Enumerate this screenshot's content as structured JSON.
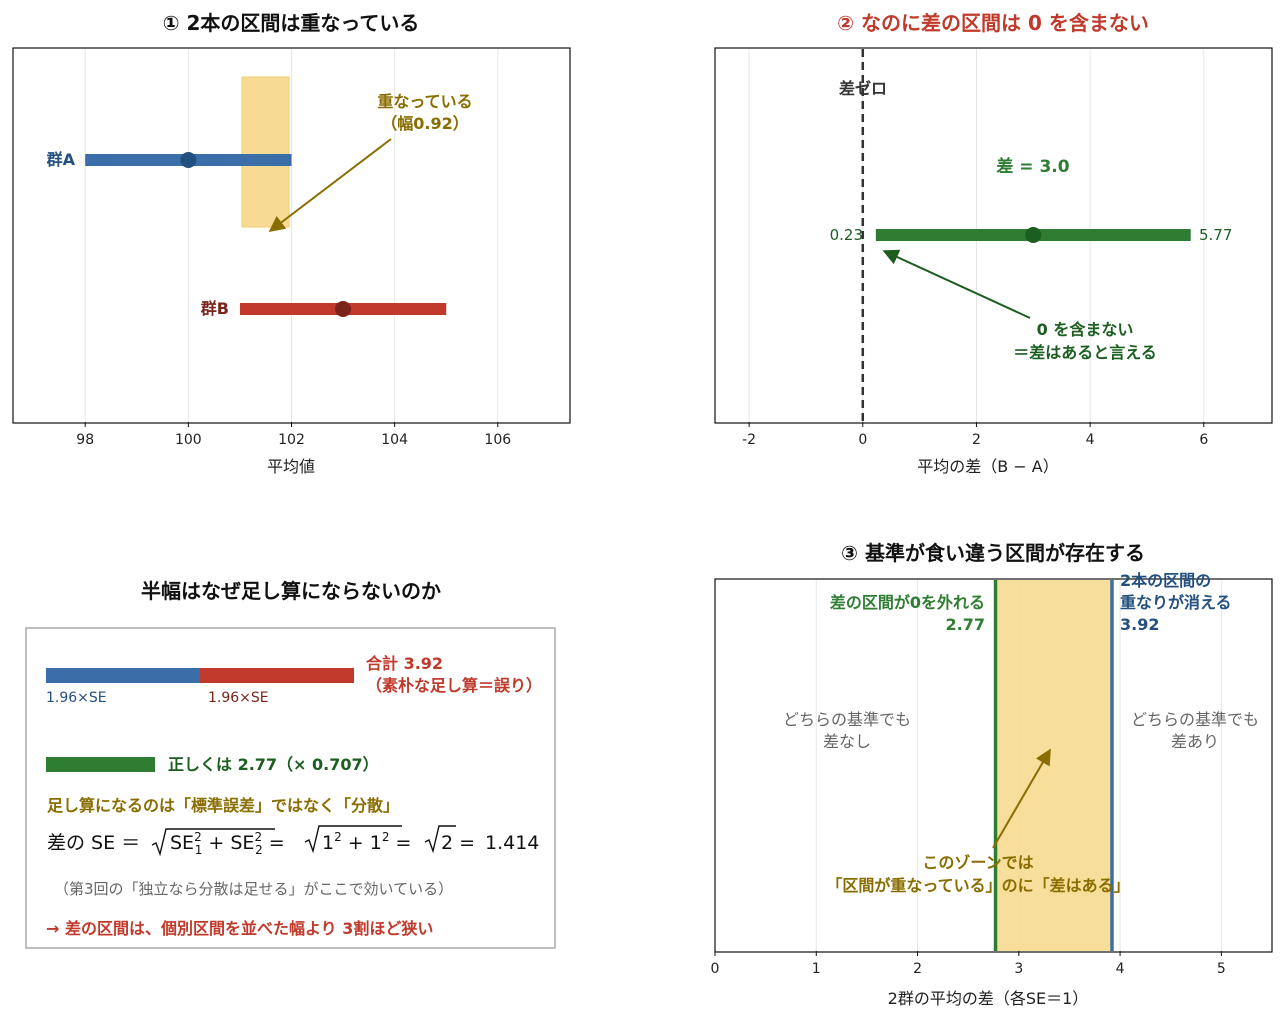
{
  "colors": {
    "blue": "#3b6ea8",
    "blue_dark": "#23507f",
    "red": "#c0392b",
    "red_dark": "#7b241c",
    "green": "#2e7d32",
    "green_dark": "#1b5e20",
    "yellow_fill": "#f7d88a",
    "gold_text": "#8a6d00",
    "gray_text": "#666666",
    "grid": "#e6e6e6"
  },
  "panel1": {
    "title": "① 2本の区間は重なっている",
    "label_a": "群A",
    "label_b": "群B",
    "overlap_line1": "重なっている",
    "overlap_line2": "（幅0.92）"
  },
  "panel2": {
    "title": "② なのに差の区間は 0 を含まない",
    "zero_label": "差ゼロ",
    "diff_label": "差 = 3.0",
    "lo_label": "0.23",
    "hi_label": "5.77",
    "note_line1": "0 を含まない",
    "note_line2": "＝差はあると言える"
  },
  "panel3": {
    "title": "半幅はなぜ足し算にならないのか",
    "seg1_label": "1.96×SE",
    "seg2_label": "1.96×SE",
    "sum_line1": "合計 3.92",
    "sum_line2": "（素朴な足し算＝誤り）",
    "correct_label": "正しくは 2.77（× 0.707）",
    "variance_heading": "足し算になるのは「標準誤差」ではなく「分散」",
    "formula_prefix": "差の SE ＝",
    "formula_value": "1.414",
    "note": "（第3回の「独立なら分散は足せる」がここで効いている）",
    "conclusion": "→ 差の区間は、個別区間を並べた幅より 3割ほど狭い"
  },
  "panel4": {
    "title": "③ 基準が食い違う区間が存在する",
    "green_line1": "差の区間が0を外れる",
    "green_line2": "2.77",
    "blue_line1": "2本の区間の",
    "blue_line2": "重なりが消える",
    "blue_line3": "3.92",
    "left_line1": "どちらの基準でも",
    "left_line2": "差なし",
    "right_line1": "どちらの基準でも",
    "right_line2": "差あり",
    "zone_line1": "このゾーンでは",
    "zone_line2": "「区間が重なっている」のに「差はある」"
  },
  "chart_data": [
    {
      "type": "interval",
      "title": "① 2本の区間は重なっている",
      "xlabel": "平均値",
      "xlim": [
        96.6,
        107.4
      ],
      "xticks": [
        98,
        100,
        102,
        104,
        106
      ],
      "series": [
        {
          "name": "群A",
          "mean": 100,
          "lo": 98,
          "hi": 102
        },
        {
          "name": "群B",
          "mean": 103,
          "lo": 101,
          "hi": 105
        }
      ],
      "overlap_band": [
        101,
        102
      ],
      "grid": true
    },
    {
      "type": "interval",
      "title": "② なのに差の区間は 0 を含まない",
      "xlabel": "平均の差（B − A）",
      "xlim": [
        -2.6,
        7.2
      ],
      "xticks": [
        -2,
        0,
        2,
        4,
        6
      ],
      "series": [
        {
          "mean": 3.0,
          "lo": 0.23,
          "hi": 5.77
        }
      ],
      "reference_line": 0,
      "grid": true
    },
    {
      "type": "bar",
      "title": "半幅はなぜ足し算にならないのか",
      "segments": [
        {
          "label": "1.96×SE",
          "value": 1.96
        },
        {
          "label": "1.96×SE",
          "value": 1.96
        }
      ],
      "naive_total": 3.92,
      "correct_total": 2.77,
      "factor": 0.707
    },
    {
      "type": "zone",
      "title": "③ 基準が食い違う区間が存在する",
      "xlabel": "2群の平均の差（各SE＝1）",
      "xlim": [
        0,
        5.5
      ],
      "xticks": [
        0,
        1,
        2,
        3,
        4,
        5
      ],
      "thresholds": [
        2.77,
        3.92
      ],
      "band": [
        2.77,
        3.92
      ],
      "grid": true
    }
  ]
}
